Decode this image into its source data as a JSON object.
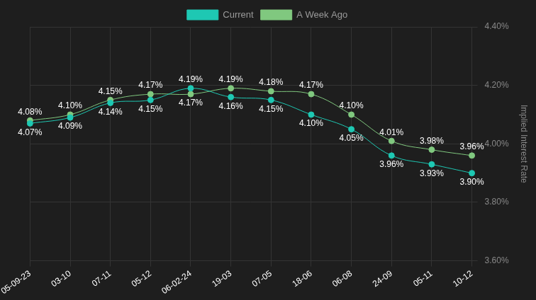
{
  "chart_data": {
    "type": "line",
    "categories": [
      "05-09-23",
      "03-10",
      "07-11",
      "05-12",
      "06-02-24",
      "19-03",
      "07-05",
      "18-06",
      "06-08",
      "24-09",
      "05-11",
      "10-12"
    ],
    "series": [
      {
        "name": "Current",
        "color": "#1ec8b3",
        "values": [
          4.07,
          4.09,
          4.14,
          4.15,
          4.19,
          4.16,
          4.15,
          4.1,
          4.05,
          3.96,
          3.93,
          3.9
        ],
        "value_labels": [
          "4.07%",
          "4.09%",
          "4.14%",
          "4.15%",
          "4.19%",
          "4.16%",
          "4.15%",
          "4.10%",
          "4.05%",
          "3.96%",
          "3.93%",
          "3.90%"
        ]
      },
      {
        "name": "A Week Ago",
        "color": "#80c87f",
        "values": [
          4.08,
          4.1,
          4.15,
          4.17,
          4.17,
          4.19,
          4.18,
          4.17,
          4.1,
          4.01,
          3.98,
          3.96
        ],
        "value_labels": [
          "4.08%",
          "4.10%",
          "4.15%",
          "4.17%",
          "4.17%",
          "4.19%",
          "4.18%",
          "4.17%",
          "4.10%",
          "4.01%",
          "3.98%",
          "3.96%"
        ]
      }
    ],
    "ylabel": "Implied Interest Rate",
    "ylim": [
      3.6,
      4.4
    ],
    "yticks": [
      {
        "value": 3.6,
        "label": "3.60%"
      },
      {
        "value": 3.8,
        "label": "3.80%"
      },
      {
        "value": 4.0,
        "label": "4.00%"
      },
      {
        "value": 4.2,
        "label": "4.20%"
      },
      {
        "value": 4.4,
        "label": "4.40%"
      }
    ],
    "grid": true,
    "legend": "top",
    "data_labels": true,
    "marker": "circle"
  }
}
